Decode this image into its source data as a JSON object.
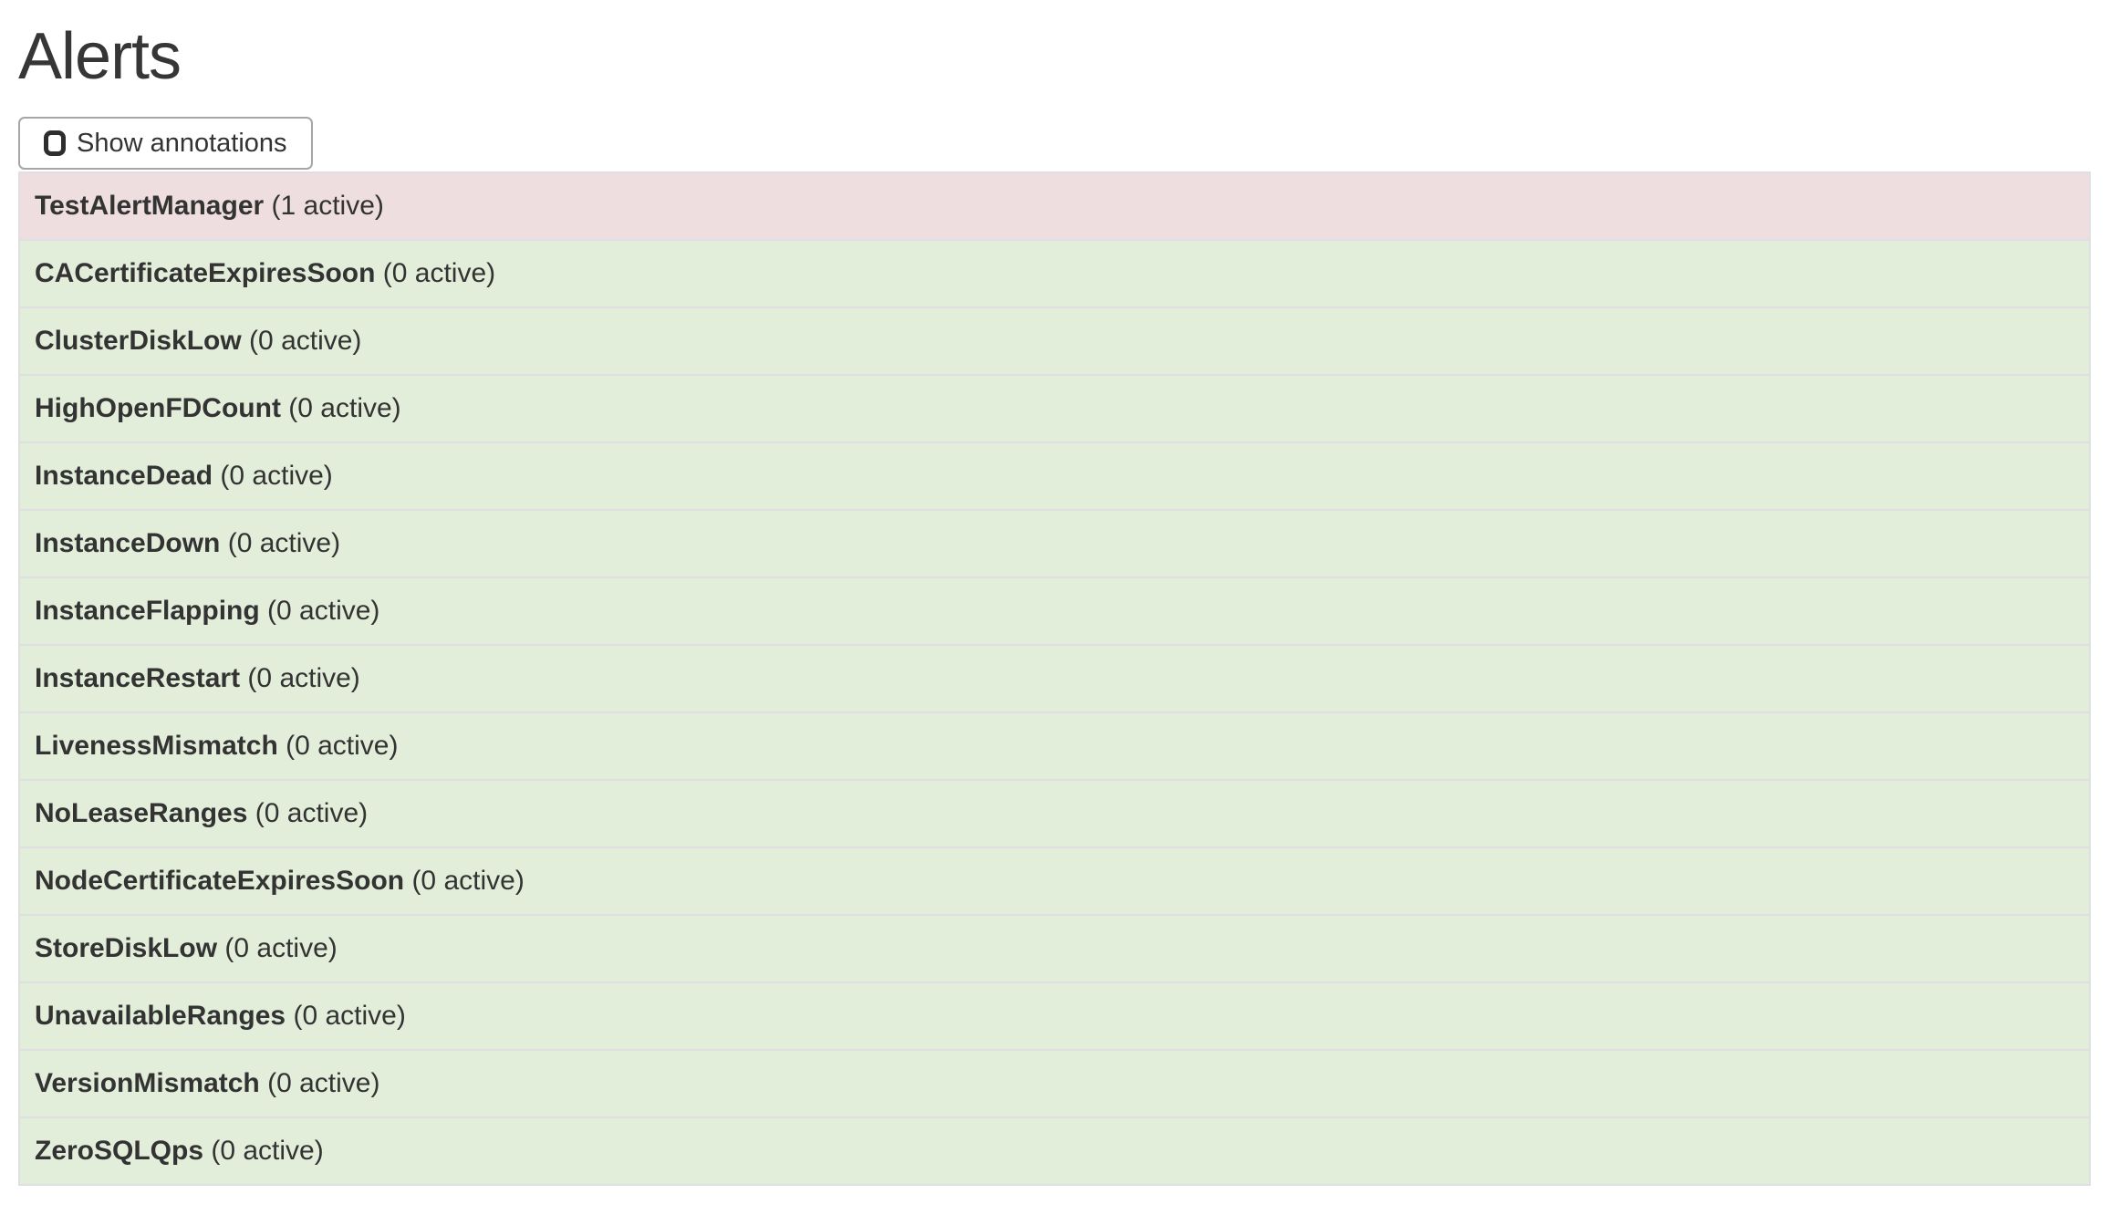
{
  "page": {
    "title": "Alerts"
  },
  "toolbar": {
    "show_annotations_label": "Show annotations",
    "show_annotations_checked": false
  },
  "colors": {
    "active_row_bg": "#efdee0",
    "inactive_row_bg": "#e2eeda",
    "row_border": "#dfdfe3",
    "button_border": "#a6a6a6",
    "text": "#333333"
  },
  "icons": {
    "checkbox_unchecked": "rounded-square-outline"
  },
  "alerts": [
    {
      "name": "TestAlertManager",
      "active_count": 1,
      "count_label": "(1 active)",
      "state": "active"
    },
    {
      "name": "CACertificateExpiresSoon",
      "active_count": 0,
      "count_label": "(0 active)",
      "state": "inactive"
    },
    {
      "name": "ClusterDiskLow",
      "active_count": 0,
      "count_label": "(0 active)",
      "state": "inactive"
    },
    {
      "name": "HighOpenFDCount",
      "active_count": 0,
      "count_label": "(0 active)",
      "state": "inactive"
    },
    {
      "name": "InstanceDead",
      "active_count": 0,
      "count_label": "(0 active)",
      "state": "inactive"
    },
    {
      "name": "InstanceDown",
      "active_count": 0,
      "count_label": "(0 active)",
      "state": "inactive"
    },
    {
      "name": "InstanceFlapping",
      "active_count": 0,
      "count_label": "(0 active)",
      "state": "inactive"
    },
    {
      "name": "InstanceRestart",
      "active_count": 0,
      "count_label": "(0 active)",
      "state": "inactive"
    },
    {
      "name": "LivenessMismatch",
      "active_count": 0,
      "count_label": "(0 active)",
      "state": "inactive"
    },
    {
      "name": "NoLeaseRanges",
      "active_count": 0,
      "count_label": "(0 active)",
      "state": "inactive"
    },
    {
      "name": "NodeCertificateExpiresSoon",
      "active_count": 0,
      "count_label": "(0 active)",
      "state": "inactive"
    },
    {
      "name": "StoreDiskLow",
      "active_count": 0,
      "count_label": "(0 active)",
      "state": "inactive"
    },
    {
      "name": "UnavailableRanges",
      "active_count": 0,
      "count_label": "(0 active)",
      "state": "inactive"
    },
    {
      "name": "VersionMismatch",
      "active_count": 0,
      "count_label": "(0 active)",
      "state": "inactive"
    },
    {
      "name": "ZeroSQLQps",
      "active_count": 0,
      "count_label": "(0 active)",
      "state": "inactive"
    }
  ]
}
